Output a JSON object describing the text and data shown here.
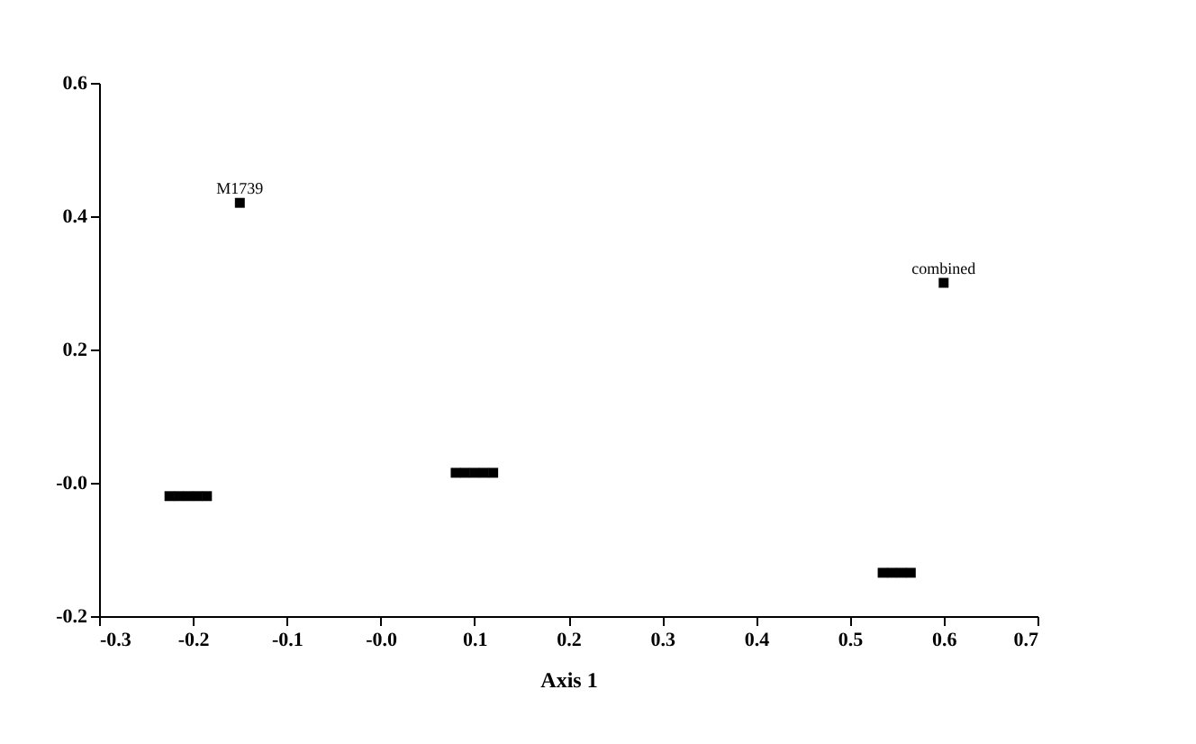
{
  "chart_data": {
    "type": "scatter",
    "xlabel": "Axis 1",
    "xlim": [
      -0.3,
      0.7
    ],
    "xticks": [
      -0.3,
      -0.2,
      -0.1,
      {
        "value": 0,
        "label": "-0.0"
      },
      0.1,
      0.2,
      0.3,
      0.4,
      0.5,
      0.6,
      0.7
    ],
    "ylim": [
      -0.2,
      0.6
    ],
    "yticks": [
      -0.2,
      {
        "value": 0,
        "label": "-0.0"
      },
      0.2,
      0.4,
      0.6
    ],
    "marker": "square",
    "grid": false,
    "series": [
      {
        "color": "#000000",
        "x": [
          -0.225,
          -0.215,
          -0.205,
          -0.195,
          -0.185,
          0.08,
          0.09,
          0.1,
          0.11,
          0.12,
          0.535,
          0.545,
          0.555,
          0.565
        ],
        "values": [
          -0.02,
          -0.02,
          -0.02,
          -0.02,
          -0.02,
          0.015,
          0.015,
          0.015,
          0.015,
          0.015,
          -0.135,
          -0.135,
          -0.135,
          -0.135
        ]
      },
      {
        "color": "#000000",
        "x": [
          -0.15,
          0.6
        ],
        "values": [
          0.42,
          0.3
        ]
      }
    ],
    "annotations": [
      {
        "text": "M1739",
        "x": -0.15,
        "y": 0.42
      },
      {
        "text": "combined",
        "x": 0.6,
        "y": 0.3
      }
    ]
  }
}
